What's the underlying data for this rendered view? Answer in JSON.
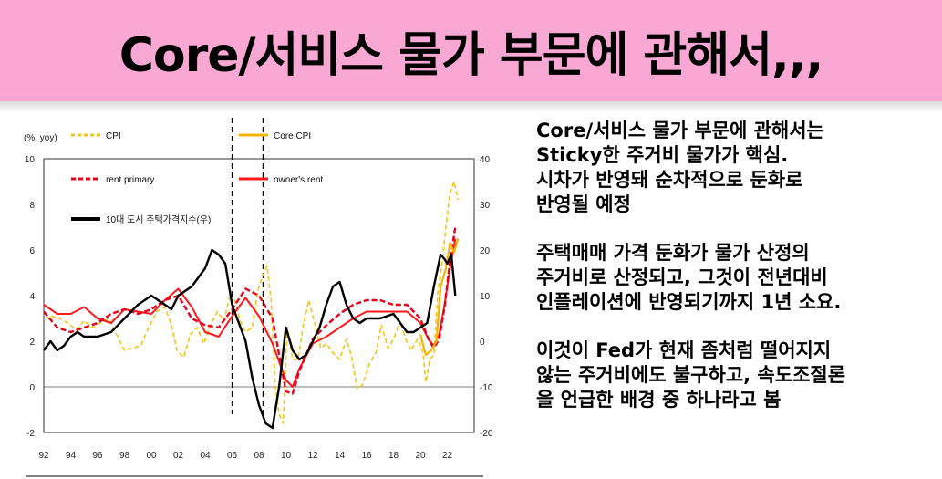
{
  "slide": {
    "title": "Core/서비스 물가 부문에 관해서,,,"
  },
  "text_panel": {
    "paragraphs": [
      [
        "Core/서비스 물가 부문에 관해서는",
        "Sticky한 주거비 물가가 핵심.",
        "시차가 반영돼 순차적으로 둔화로",
        "반영될 예정"
      ],
      [
        "주택매매 가격 둔화가 물가 산정의",
        "주거비로 산정되고, 그것이 전년대비",
        "인플레이션에 반영되기까지 1년 소요."
      ],
      [
        "이것이 Fed가 현재 좀처럼 떨어지지",
        "않는 주거비에도 불구하고, 속도조절론",
        "을 언급한 배경 중 하나라고 봄"
      ]
    ]
  },
  "chart_data": {
    "type": "line",
    "unit_label": "(%, yoy)",
    "x_ticks": [
      "92",
      "94",
      "96",
      "98",
      "00",
      "02",
      "04",
      "06",
      "08",
      "10",
      "12",
      "14",
      "16",
      "18",
      "20",
      "22"
    ],
    "y_left": {
      "range": [
        -2,
        10
      ],
      "ticks": [
        "-2",
        "0",
        "2",
        "4",
        "6",
        "8",
        "10"
      ]
    },
    "y_right": {
      "range": [
        -20,
        40
      ],
      "ticks": [
        "-20",
        "-10",
        "0",
        "10",
        "20",
        "30",
        "40"
      ]
    },
    "vlines": [
      2006.0,
      2008.3
    ],
    "legend": [
      "CPI",
      "Core CPI",
      "rent primary",
      "owner's rent",
      "10대 도시 주택가격지수(우)"
    ],
    "colors": {
      "cpi": "#f5c518",
      "core": "#f5b400",
      "rent": "#e8001c",
      "owner": "#ff1a1a",
      "housing": "#000000"
    },
    "series": [
      {
        "name": "CPI",
        "axis": "left",
        "style": "dashed",
        "points": [
          [
            1992,
            3.0
          ],
          [
            1992.6,
            3.1
          ],
          [
            1993.2,
            3.0
          ],
          [
            1993.8,
            2.8
          ],
          [
            1994.4,
            2.5
          ],
          [
            1995,
            2.9
          ],
          [
            1995.6,
            2.6
          ],
          [
            1996.2,
            2.8
          ],
          [
            1996.8,
            3.0
          ],
          [
            1997.4,
            2.3
          ],
          [
            1998,
            1.6
          ],
          [
            1998.6,
            1.7
          ],
          [
            1999.2,
            1.8
          ],
          [
            1999.8,
            2.6
          ],
          [
            2000.4,
            3.3
          ],
          [
            2001,
            3.5
          ],
          [
            2001.5,
            2.7
          ],
          [
            2001.9,
            1.6
          ],
          [
            2002.4,
            1.3
          ],
          [
            2002.9,
            2.3
          ],
          [
            2003.4,
            2.6
          ],
          [
            2003.9,
            1.9
          ],
          [
            2004.4,
            2.7
          ],
          [
            2004.9,
            3.3
          ],
          [
            2005.4,
            2.9
          ],
          [
            2005.8,
            3.9
          ],
          [
            2006.2,
            3.8
          ],
          [
            2006.6,
            2.9
          ],
          [
            2007,
            2.4
          ],
          [
            2007.5,
            2.6
          ],
          [
            2007.9,
            4.2
          ],
          [
            2008.3,
            4.9
          ],
          [
            2008.6,
            5.3
          ],
          [
            2008.9,
            3.8
          ],
          [
            2009.2,
            0.1
          ],
          [
            2009.5,
            -1.2
          ],
          [
            2009.8,
            -1.6
          ],
          [
            2010.1,
            2.6
          ],
          [
            2010.5,
            1.2
          ],
          [
            2010.9,
            1.2
          ],
          [
            2011.3,
            2.7
          ],
          [
            2011.7,
            3.8
          ],
          [
            2012.1,
            2.9
          ],
          [
            2012.6,
            1.7
          ],
          [
            2013,
            1.9
          ],
          [
            2013.5,
            1.5
          ],
          [
            2014,
            1.2
          ],
          [
            2014.5,
            2.1
          ],
          [
            2014.9,
            1.3
          ],
          [
            2015.3,
            -0.1
          ],
          [
            2015.7,
            0.1
          ],
          [
            2016.2,
            1.0
          ],
          [
            2016.7,
            1.5
          ],
          [
            2017.1,
            2.7
          ],
          [
            2017.6,
            1.7
          ],
          [
            2018,
            2.1
          ],
          [
            2018.5,
            2.9
          ],
          [
            2018.9,
            2.1
          ],
          [
            2019.3,
            1.6
          ],
          [
            2019.8,
            2.1
          ],
          [
            2020.2,
            1.5
          ],
          [
            2020.4,
            0.2
          ],
          [
            2020.7,
            1.2
          ],
          [
            2021,
            1.4
          ],
          [
            2021.3,
            4.2
          ],
          [
            2021.6,
            5.4
          ],
          [
            2021.9,
            7.0
          ],
          [
            2022.2,
            8.5
          ],
          [
            2022.5,
            9.0
          ],
          [
            2022.8,
            8.2
          ]
        ]
      },
      {
        "name": "Core CPI",
        "axis": "left",
        "style": "solid",
        "points": [
          [
            2020.0,
            2.3
          ],
          [
            2020.4,
            1.4
          ],
          [
            2020.8,
            1.6
          ],
          [
            2021.2,
            2.0
          ],
          [
            2021.5,
            4.4
          ],
          [
            2021.9,
            5.2
          ],
          [
            2022.2,
            6.3
          ],
          [
            2022.5,
            5.9
          ],
          [
            2022.8,
            6.5
          ]
        ]
      },
      {
        "name": "rent primary",
        "axis": "left",
        "style": "dashed",
        "points": [
          [
            1992,
            3.3
          ],
          [
            1993,
            2.6
          ],
          [
            1994,
            2.4
          ],
          [
            1995,
            2.6
          ],
          [
            1996,
            2.8
          ],
          [
            1997,
            3.2
          ],
          [
            1998,
            3.4
          ],
          [
            1999,
            3.2
          ],
          [
            2000,
            3.4
          ],
          [
            2001,
            3.8
          ],
          [
            2002,
            4.0
          ],
          [
            2003,
            3.0
          ],
          [
            2004,
            2.7
          ],
          [
            2005,
            2.6
          ],
          [
            2006,
            3.4
          ],
          [
            2007,
            4.3
          ],
          [
            2008,
            4.0
          ],
          [
            2009,
            3.0
          ],
          [
            2010,
            -0.2
          ],
          [
            2010.5,
            -0.3
          ],
          [
            2011,
            0.7
          ],
          [
            2012,
            2.1
          ],
          [
            2013,
            2.7
          ],
          [
            2014,
            3.2
          ],
          [
            2015,
            3.6
          ],
          [
            2016,
            3.8
          ],
          [
            2017,
            3.8
          ],
          [
            2018,
            3.6
          ],
          [
            2019,
            3.6
          ],
          [
            2020,
            3.0
          ],
          [
            2020.6,
            2.1
          ],
          [
            2021,
            1.7
          ],
          [
            2021.4,
            2.1
          ],
          [
            2021.8,
            3.5
          ],
          [
            2022.2,
            5.5
          ],
          [
            2022.6,
            7.0
          ]
        ]
      },
      {
        "name": "owner's rent",
        "axis": "left",
        "style": "solid",
        "points": [
          [
            1992,
            3.6
          ],
          [
            1993,
            3.2
          ],
          [
            1994,
            3.2
          ],
          [
            1995,
            3.5
          ],
          [
            1996,
            3.0
          ],
          [
            1997,
            2.8
          ],
          [
            1998,
            3.4
          ],
          [
            1999,
            3.3
          ],
          [
            2000,
            3.2
          ],
          [
            2001,
            3.8
          ],
          [
            2002,
            4.3
          ],
          [
            2003,
            3.5
          ],
          [
            2004,
            2.4
          ],
          [
            2005,
            2.2
          ],
          [
            2006,
            3.1
          ],
          [
            2007,
            3.9
          ],
          [
            2008,
            3.1
          ],
          [
            2009,
            1.9
          ],
          [
            2010,
            0.3
          ],
          [
            2010.5,
            0.0
          ],
          [
            2011,
            0.8
          ],
          [
            2012,
            1.9
          ],
          [
            2013,
            2.2
          ],
          [
            2014,
            2.6
          ],
          [
            2015,
            3.0
          ],
          [
            2016,
            3.3
          ],
          [
            2017,
            3.3
          ],
          [
            2018,
            3.3
          ],
          [
            2019,
            3.3
          ],
          [
            2020,
            2.8
          ],
          [
            2020.6,
            2.1
          ],
          [
            2021,
            1.8
          ],
          [
            2021.4,
            2.3
          ],
          [
            2021.8,
            3.6
          ],
          [
            2022.2,
            5.2
          ],
          [
            2022.6,
            6.5
          ]
        ]
      },
      {
        "name": "10대 도시 주택가격지수(우)",
        "axis": "right",
        "style": "solid",
        "points": [
          [
            1992,
            -2
          ],
          [
            1992.5,
            0
          ],
          [
            1993,
            -2
          ],
          [
            1993.5,
            -1
          ],
          [
            1994,
            1
          ],
          [
            1994.5,
            2
          ],
          [
            1995,
            1
          ],
          [
            1996,
            1
          ],
          [
            1997,
            2
          ],
          [
            1998,
            5
          ],
          [
            1999,
            8
          ],
          [
            2000,
            10
          ],
          [
            2000.5,
            9
          ],
          [
            2001,
            8
          ],
          [
            2001.5,
            7
          ],
          [
            2002,
            10
          ],
          [
            2003,
            12
          ],
          [
            2003.5,
            14
          ],
          [
            2004,
            16
          ],
          [
            2004.5,
            20
          ],
          [
            2005,
            19
          ],
          [
            2005.5,
            17
          ],
          [
            2006,
            8
          ],
          [
            2006.5,
            4
          ],
          [
            2007,
            0
          ],
          [
            2007.5,
            -8
          ],
          [
            2008,
            -14
          ],
          [
            2008.5,
            -18
          ],
          [
            2009,
            -19
          ],
          [
            2009.5,
            -10
          ],
          [
            2010,
            3
          ],
          [
            2010.5,
            -2
          ],
          [
            2011,
            -4
          ],
          [
            2011.5,
            -3
          ],
          [
            2012,
            0
          ],
          [
            2012.5,
            3
          ],
          [
            2013,
            8
          ],
          [
            2013.5,
            12
          ],
          [
            2014,
            13
          ],
          [
            2014.5,
            8
          ],
          [
            2015,
            5
          ],
          [
            2015.5,
            4
          ],
          [
            2016,
            5
          ],
          [
            2017,
            5
          ],
          [
            2018,
            6
          ],
          [
            2018.5,
            4
          ],
          [
            2019,
            2
          ],
          [
            2019.5,
            2
          ],
          [
            2020,
            3
          ],
          [
            2020.5,
            4
          ],
          [
            2021,
            12
          ],
          [
            2021.5,
            19
          ],
          [
            2021.8,
            18
          ],
          [
            2022,
            17
          ],
          [
            2022.3,
            19
          ],
          [
            2022.6,
            10
          ]
        ]
      }
    ]
  }
}
